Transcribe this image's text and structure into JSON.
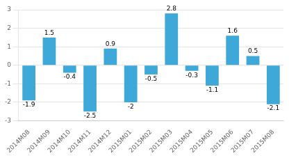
{
  "chart_data": {
    "type": "bar",
    "categories": [
      "2014M08",
      "2014M09",
      "2014M10",
      "2014M11",
      "2014M12",
      "2015M01",
      "2015M02",
      "2015M03",
      "2015M04",
      "2015M05",
      "2015M06",
      "2015M07",
      "2015M08"
    ],
    "values": [
      -1.9,
      1.5,
      -0.4,
      -2.5,
      0.9,
      -2.0,
      -0.5,
      2.8,
      -0.3,
      -1.1,
      1.6,
      0.5,
      -2.1
    ],
    "color": "#3ea8d8",
    "ylim": [
      -3,
      3
    ],
    "yticks": [
      -3,
      -2,
      -1,
      0,
      1,
      2,
      3
    ],
    "grid": true,
    "data_labels": true
  }
}
